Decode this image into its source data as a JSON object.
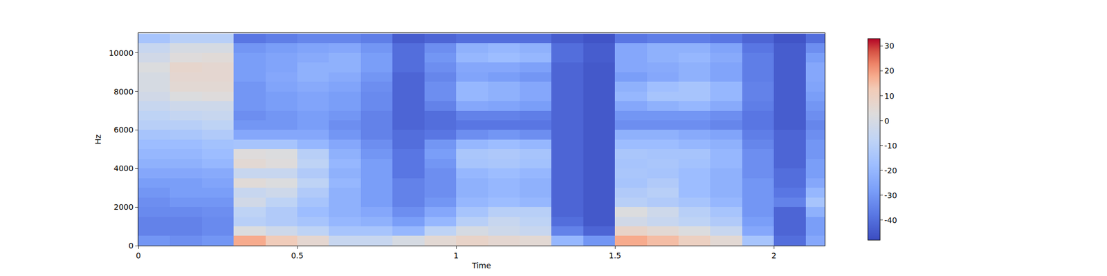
{
  "chart_data": {
    "type": "heatmap",
    "xlabel": "Time",
    "ylabel": "Hz",
    "x": [
      0.05,
      0.15,
      0.25,
      0.35,
      0.45,
      0.55,
      0.65,
      0.75,
      0.85,
      0.95,
      1.05,
      1.15,
      1.25,
      1.35,
      1.45,
      1.55,
      1.65,
      1.75,
      1.85,
      1.95,
      2.05,
      2.15
    ],
    "y": [
      250,
      750,
      1250,
      1750,
      2250,
      2750,
      3250,
      3750,
      4250,
      4750,
      5250,
      5750,
      6250,
      6750,
      7250,
      7750,
      8250,
      8750,
      9250,
      9750,
      10250,
      10750
    ],
    "z": [
      [
        -30,
        -32,
        -30,
        18,
        12,
        6,
        -5,
        -5,
        0,
        5,
        8,
        6,
        5,
        -20,
        -30,
        18,
        15,
        10,
        5,
        -15,
        -40,
        -25
      ],
      [
        -35,
        -35,
        -33,
        2,
        -3,
        -8,
        -15,
        -15,
        -20,
        -8,
        0,
        -3,
        -5,
        -35,
        -42,
        8,
        5,
        2,
        -5,
        -25,
        -42,
        -28
      ],
      [
        -35,
        -35,
        -33,
        -10,
        -12,
        -15,
        -20,
        -22,
        -28,
        -20,
        -10,
        -5,
        -8,
        -40,
        -45,
        -2,
        -5,
        -8,
        -12,
        -28,
        -42,
        -28
      ],
      [
        -33,
        -33,
        -32,
        -8,
        -12,
        -18,
        -22,
        -25,
        -32,
        -25,
        -15,
        -10,
        -10,
        -42,
        -45,
        2,
        -3,
        -10,
        -15,
        -30,
        -42,
        -22
      ],
      [
        -32,
        -30,
        -30,
        -2,
        -8,
        -15,
        -22,
        -28,
        -35,
        -30,
        -20,
        -18,
        -20,
        -42,
        -45,
        -10,
        -12,
        -15,
        -20,
        -30,
        -35,
        -15
      ],
      [
        -30,
        -28,
        -28,
        -5,
        -3,
        -12,
        -22,
        -28,
        -35,
        -32,
        -22,
        -20,
        -22,
        -42,
        -45,
        -12,
        -10,
        -18,
        -22,
        -30,
        -38,
        -20
      ],
      [
        -28,
        -28,
        -26,
        4,
        2,
        -8,
        -20,
        -28,
        -35,
        -32,
        -22,
        -20,
        -22,
        -42,
        -45,
        -15,
        -12,
        -18,
        -22,
        -30,
        -40,
        -25
      ],
      [
        -25,
        -25,
        -24,
        -5,
        -5,
        -12,
        -22,
        -28,
        -38,
        -32,
        -20,
        -18,
        -20,
        -42,
        -45,
        -14,
        -15,
        -18,
        -22,
        -32,
        -40,
        -28
      ],
      [
        -22,
        -22,
        -20,
        5,
        3,
        -8,
        -20,
        -28,
        -38,
        -30,
        -15,
        -14,
        -16,
        -42,
        -45,
        -15,
        -14,
        -16,
        -20,
        -32,
        -42,
        -28
      ],
      [
        -20,
        -20,
        -18,
        3,
        2,
        -10,
        -22,
        -30,
        -38,
        -28,
        -14,
        -13,
        -15,
        -42,
        -45,
        -14,
        -15,
        -15,
        -20,
        -32,
        -42,
        -30
      ],
      [
        -18,
        -18,
        -16,
        -15,
        -15,
        -20,
        -25,
        -32,
        -40,
        -30,
        -20,
        -18,
        -20,
        -42,
        -45,
        -18,
        -18,
        -20,
        -22,
        -34,
        -42,
        -30
      ],
      [
        -15,
        -14,
        -12,
        -25,
        -25,
        -25,
        -30,
        -35,
        -40,
        -38,
        -32,
        -30,
        -32,
        -42,
        -45,
        -22,
        -22,
        -24,
        -26,
        -36,
        -42,
        -32
      ],
      [
        -10,
        -10,
        -8,
        -30,
        -30,
        -28,
        -32,
        -35,
        -42,
        -40,
        -38,
        -38,
        -38,
        -42,
        -45,
        -32,
        -32,
        -32,
        -34,
        -38,
        -44,
        -34
      ],
      [
        -8,
        -6,
        -5,
        -32,
        -30,
        -28,
        -30,
        -35,
        -42,
        -40,
        -35,
        -35,
        -36,
        -42,
        -45,
        -30,
        -30,
        -30,
        -32,
        -38,
        -44,
        -32
      ],
      [
        -5,
        -3,
        -3,
        -30,
        -28,
        -26,
        -28,
        -33,
        -42,
        -35,
        -25,
        -26,
        -28,
        -42,
        -45,
        -25,
        -22,
        -20,
        -24,
        -36,
        -44,
        -30
      ],
      [
        -2,
        2,
        3,
        -30,
        -28,
        -26,
        -28,
        -33,
        -42,
        -32,
        -20,
        -22,
        -25,
        -42,
        -45,
        -20,
        -15,
        -15,
        -20,
        -35,
        -44,
        -28
      ],
      [
        0,
        5,
        5,
        -30,
        -26,
        -24,
        -26,
        -32,
        -42,
        -32,
        -20,
        -22,
        -25,
        -42,
        -45,
        -22,
        -17,
        -15,
        -20,
        -35,
        -44,
        -26
      ],
      [
        0,
        6,
        6,
        -28,
        -25,
        -22,
        -24,
        -30,
        -42,
        -34,
        -26,
        -28,
        -30,
        -42,
        -45,
        -28,
        -25,
        -22,
        -26,
        -36,
        -44,
        -25
      ],
      [
        2,
        7,
        6,
        -28,
        -26,
        -22,
        -22,
        -28,
        -40,
        -32,
        -25,
        -25,
        -27,
        -42,
        -45,
        -25,
        -24,
        -22,
        -26,
        -36,
        -44,
        -25
      ],
      [
        -2,
        3,
        4,
        -28,
        -26,
        -24,
        -22,
        -28,
        -40,
        -30,
        -20,
        -18,
        -20,
        -40,
        -44,
        -25,
        -22,
        -20,
        -24,
        -36,
        -44,
        -28
      ],
      [
        -5,
        0,
        0,
        -30,
        -28,
        -26,
        -25,
        -30,
        -40,
        -32,
        -22,
        -20,
        -22,
        -40,
        -44,
        -25,
        -22,
        -22,
        -26,
        -38,
        -44,
        -32
      ],
      [
        -15,
        -10,
        -10,
        -38,
        -36,
        -34,
        -34,
        -36,
        -44,
        -42,
        -40,
        -40,
        -40,
        -44,
        -46,
        -38,
        -36,
        -36,
        -38,
        -42,
        -46,
        -40
      ]
    ],
    "xlim": [
      0,
      2.16
    ],
    "ylim": [
      0,
      11025
    ],
    "xticks": [
      0,
      0.5,
      1,
      1.5,
      2
    ],
    "yticks": [
      0,
      2000,
      4000,
      6000,
      8000,
      10000
    ],
    "colorbar": {
      "range": [
        -48,
        33
      ],
      "ticks": [
        -40,
        -30,
        -20,
        -10,
        0,
        10,
        20,
        30
      ]
    }
  }
}
